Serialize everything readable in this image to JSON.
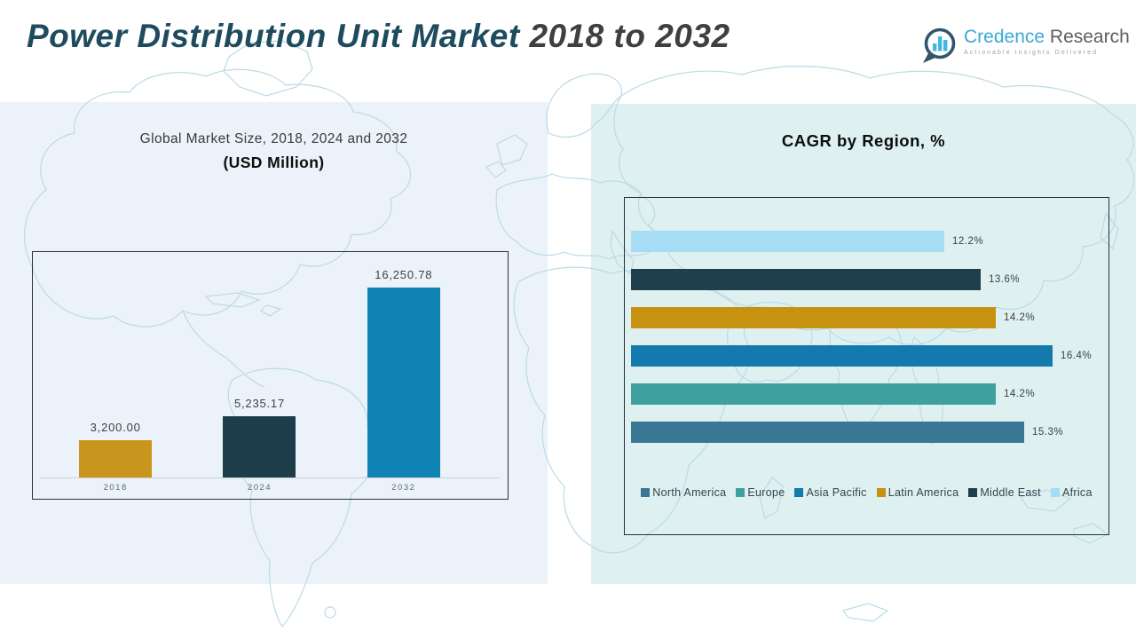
{
  "header": {
    "title_main": "Power Distribution Unit Market",
    "title_range": "2018 to 2032"
  },
  "logo": {
    "name_part1": "Credence",
    "name_part2": "Research",
    "tagline": "Actionable Insights Delivered"
  },
  "colors": {
    "title_teal": "#1E4B5E",
    "title_gray": "#3F3F3F",
    "panel_left_bg": "#EBF2F9",
    "panel_right_bg": "#DEF0F0",
    "map_stroke": "#BCDAE7",
    "box_border": "#25333B",
    "gold": "#C8951D",
    "dark_navy": "#1E3D4B",
    "blue": "#0F84B4",
    "steel_blue": "#3A7795",
    "teal": "#3FA0A0",
    "light_blue": "#A6DDF4"
  },
  "chart_data": [
    {
      "type": "bar",
      "orientation": "vertical",
      "title": "Global Market Size, 2018, 2024 and 2032",
      "subtitle": "(USD Million)",
      "categories": [
        "2018",
        "2024",
        "2032"
      ],
      "values": [
        3200.0,
        5235.17,
        16250.78
      ],
      "value_labels": [
        "3,200.00",
        "5,235.17",
        "16,250.78"
      ],
      "bar_colors": [
        "#C8951D",
        "#1E3D4B",
        "#0F84B4"
      ],
      "ylim": [
        0,
        16250.78
      ],
      "grid": false,
      "xlabel": "",
      "ylabel": ""
    },
    {
      "type": "bar",
      "orientation": "horizontal",
      "title": "CAGR by Region, %",
      "bars": [
        {
          "region": "Africa",
          "value": 12.2,
          "label": "12.2%",
          "color": "#A6DDF4"
        },
        {
          "region": "Middle East",
          "value": 13.6,
          "label": "13.6%",
          "color": "#203F4D"
        },
        {
          "region": "Latin America",
          "value": 14.2,
          "label": "14.2%",
          "color": "#C6920F"
        },
        {
          "region": "Asia Pacific",
          "value": 16.4,
          "label": "16.4%",
          "color": "#1479AD"
        },
        {
          "region": "Europe",
          "value": 14.2,
          "label": "14.2%",
          "color": "#3FA0A0"
        },
        {
          "region": "North America",
          "value": 15.3,
          "label": "15.3%",
          "color": "#3A7795"
        }
      ],
      "legend": [
        {
          "label": "North America",
          "color": "#3A7795"
        },
        {
          "label": "Europe",
          "color": "#3FA0A0"
        },
        {
          "label": "Asia Pacific",
          "color": "#1479AD"
        },
        {
          "label": "Latin America",
          "color": "#C6920F"
        },
        {
          "label": "Middle East",
          "color": "#203F4D"
        },
        {
          "label": "Africa",
          "color": "#A6DDF4"
        }
      ],
      "legend_position": "bottom",
      "xlim": [
        0,
        16.4
      ],
      "grid": false
    }
  ]
}
